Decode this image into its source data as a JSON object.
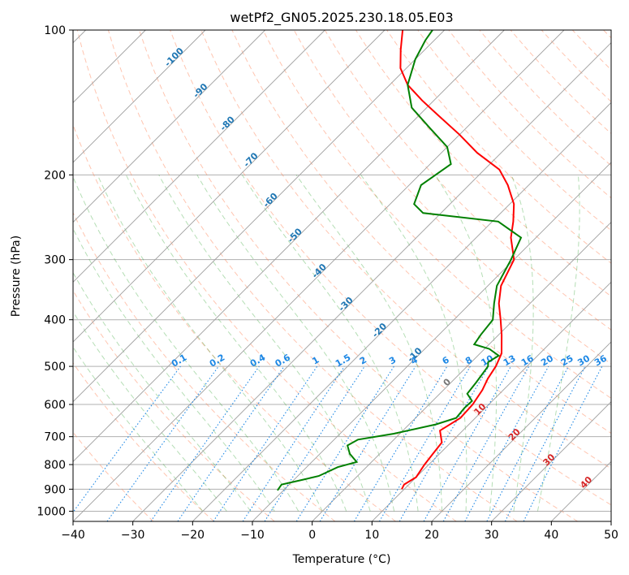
{
  "chart_data": {
    "type": "line",
    "title": "wetPf2_GN05.2025.230.18.05.E03",
    "xlabel": "Temperature (°C)",
    "ylabel": "Pressure (hPa)",
    "xlim": [
      -40,
      50
    ],
    "ylim": [
      1050,
      100
    ],
    "y_scale": "log",
    "grid": true,
    "x_ticks": [
      "−40",
      "−30",
      "−20",
      "−10",
      "0",
      "10",
      "20",
      "30",
      "40",
      "50"
    ],
    "y_ticks": [
      "100",
      "200",
      "300",
      "400",
      "500",
      "600",
      "700",
      "800",
      "900",
      "1000"
    ],
    "colors": {
      "temperature": "#ff0000",
      "dewpoint": "#008000",
      "dry_adiabat": "#ff7f50",
      "moist_adiabat": "#2ca02c",
      "mixing_ratio": "#1e88e5",
      "isotherm": "#808080",
      "axis": "#000000"
    },
    "series": [
      {
        "values": [
          {
            "x": 9.6,
            "y": 900
          },
          {
            "x": 9.2,
            "y": 880
          },
          {
            "x": 10.0,
            "y": 850
          },
          {
            "x": 9.3,
            "y": 800
          },
          {
            "x": 8.9,
            "y": 760
          },
          {
            "x": 8.5,
            "y": 720
          },
          {
            "x": 6.2,
            "y": 680
          },
          {
            "x": 7.5,
            "y": 640
          },
          {
            "x": 7.3,
            "y": 600
          },
          {
            "x": 6.5,
            "y": 560
          },
          {
            "x": 5.5,
            "y": 530
          },
          {
            "x": 4.8,
            "y": 500
          },
          {
            "x": 3.6,
            "y": 470
          },
          {
            "x": 0.5,
            "y": 430
          },
          {
            "x": -2.2,
            "y": 400
          },
          {
            "x": -5.2,
            "y": 370
          },
          {
            "x": -7.8,
            "y": 340
          },
          {
            "x": -10.0,
            "y": 300
          },
          {
            "x": -14.2,
            "y": 270
          },
          {
            "x": -16.5,
            "y": 250
          },
          {
            "x": -19.3,
            "y": 230
          },
          {
            "x": -23.5,
            "y": 210
          },
          {
            "x": -27.5,
            "y": 195
          },
          {
            "x": -34.0,
            "y": 180
          },
          {
            "x": -40.0,
            "y": 165
          },
          {
            "x": -47.0,
            "y": 150
          },
          {
            "x": -52.0,
            "y": 140
          },
          {
            "x": -57.0,
            "y": 130
          },
          {
            "x": -61.0,
            "y": 120
          },
          {
            "x": -64.0,
            "y": 110
          },
          {
            "x": -67.0,
            "y": 100
          }
        ]
      },
      {
        "values": [
          {
            "x": -11.0,
            "y": 905
          },
          {
            "x": -11.3,
            "y": 880
          },
          {
            "x": -8.5,
            "y": 860
          },
          {
            "x": -6.5,
            "y": 845
          },
          {
            "x": -4.8,
            "y": 810
          },
          {
            "x": -2.5,
            "y": 790
          },
          {
            "x": -5.0,
            "y": 760
          },
          {
            "x": -6.8,
            "y": 730
          },
          {
            "x": -6.0,
            "y": 710
          },
          {
            "x": -1.0,
            "y": 690
          },
          {
            "x": 4.5,
            "y": 660
          },
          {
            "x": 6.8,
            "y": 640
          },
          {
            "x": 6.5,
            "y": 610
          },
          {
            "x": 6.6,
            "y": 590
          },
          {
            "x": 4.6,
            "y": 570
          },
          {
            "x": 4.2,
            "y": 540
          },
          {
            "x": 3.5,
            "y": 500
          },
          {
            "x": 2.8,
            "y": 490
          },
          {
            "x": 3.5,
            "y": 475
          },
          {
            "x": 0.8,
            "y": 460
          },
          {
            "x": -2.5,
            "y": 450
          },
          {
            "x": -3.0,
            "y": 430
          },
          {
            "x": -3.5,
            "y": 400
          },
          {
            "x": -6.0,
            "y": 370
          },
          {
            "x": -8.5,
            "y": 340
          },
          {
            "x": -10.5,
            "y": 300
          },
          {
            "x": -12.5,
            "y": 270
          },
          {
            "x": -19.0,
            "y": 250
          },
          {
            "x": -33.0,
            "y": 240
          },
          {
            "x": -36.0,
            "y": 230
          },
          {
            "x": -38.0,
            "y": 210
          },
          {
            "x": -36.5,
            "y": 190
          },
          {
            "x": -40.0,
            "y": 175
          },
          {
            "x": -46.0,
            "y": 160
          },
          {
            "x": -52.5,
            "y": 145
          },
          {
            "x": -57.0,
            "y": 130
          },
          {
            "x": -60.0,
            "y": 115
          },
          {
            "x": -61.5,
            "y": 105
          },
          {
            "x": -62.0,
            "y": 100
          }
        ]
      }
    ],
    "isotherm_labels": [
      "-100",
      "-90",
      "-80",
      "-70",
      "-60",
      "-50",
      "-40",
      "-30",
      "-20",
      "-10",
      "0",
      "10",
      "20",
      "30",
      "40"
    ],
    "mixing_ratio_labels": [
      "0.1",
      "0.2",
      "0.4",
      "0.6",
      "1",
      "1.5",
      "2",
      "3",
      "4",
      "6",
      "8",
      "10",
      "13",
      "16",
      "20",
      "25",
      "30",
      "36"
    ]
  }
}
